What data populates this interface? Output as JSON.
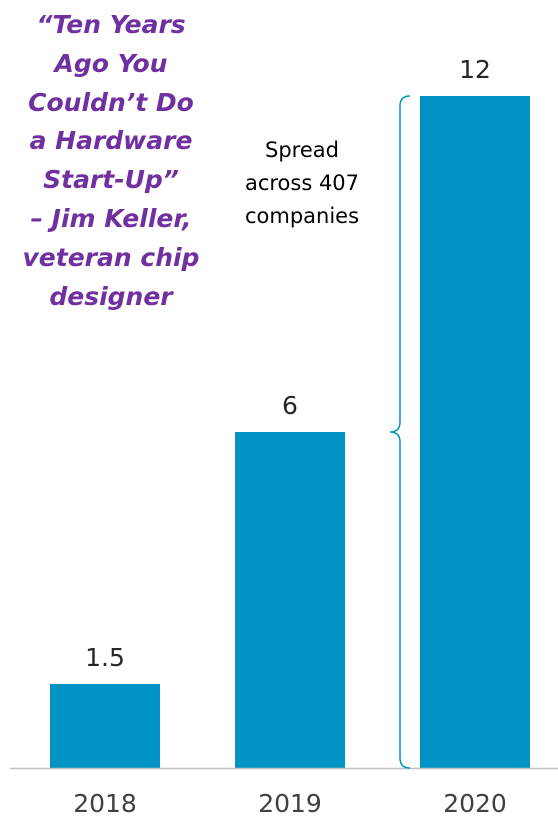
{
  "chart_data": {
    "type": "bar",
    "categories": [
      "2018",
      "2019",
      "2020"
    ],
    "values": [
      1.5,
      6,
      12
    ],
    "data_labels": [
      "1.5",
      "6",
      "12"
    ],
    "title": "",
    "xlabel": "",
    "ylabel": "",
    "ylim": [
      0,
      12
    ],
    "grid": false,
    "legend": "none",
    "bar_color": "#0093c4",
    "axis_color": "#bfbfbf"
  },
  "quote": {
    "lines": [
      "“Ten Years",
      "Ago You",
      "Couldn’t Do",
      "a Hardware",
      "Start-Up”",
      "– Jim Keller,",
      "veteran chip",
      "designer"
    ],
    "color": "#7030a0"
  },
  "annotation": {
    "lines": [
      "Spread",
      "across 407",
      "companies"
    ]
  }
}
